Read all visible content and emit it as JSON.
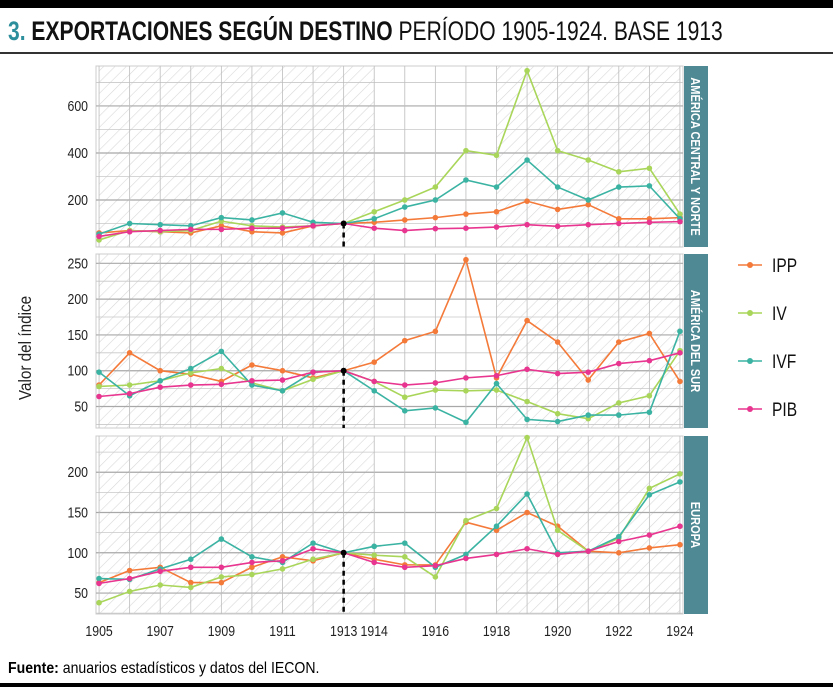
{
  "title": {
    "number": "3.",
    "bold": "EXPORTACIONES SEGÚN DESTINO",
    "rest": "PERÍODO 1905-1924. BASE 1913"
  },
  "footer": {
    "label": "Fuente:",
    "text": "anuarios estadísticos y datos del IECON."
  },
  "chart_data": {
    "type": "line",
    "ylabel": "Valor del índice",
    "xlabel": "",
    "x": [
      1905,
      1906,
      1907,
      1908,
      1909,
      1910,
      1911,
      1912,
      1913,
      1914,
      1915,
      1916,
      1917,
      1918,
      1919,
      1920,
      1921,
      1922,
      1923,
      1924
    ],
    "x_tick_labels": [
      "1905",
      "1907",
      "1909",
      "1911",
      "1913",
      "1914",
      "1916",
      "1918",
      "1920",
      "1922",
      "1924"
    ],
    "base_year": 1913,
    "shaded_periods": [
      [
        1905,
        1914
      ],
      [
        1918,
        1924
      ]
    ],
    "legend": {
      "placement": "right",
      "entries": [
        "IPP",
        "IV",
        "IVF",
        "PIB"
      ]
    },
    "colors": {
      "IPP": "#f47a3a",
      "IV": "#a9d65a",
      "IVF": "#3bb3a3",
      "PIB": "#e8358f",
      "strip": "#4f8a94"
    },
    "panels": [
      {
        "name": "AMÉRICA CENTRAL Y NORTE",
        "ylim": [
          0,
          770
        ],
        "yticks": [
          200,
          400,
          600
        ],
        "ytick_labels": [
          "200",
          "400",
          "600"
        ],
        "series": [
          {
            "name": "IPP",
            "values": [
              60,
              70,
              65,
              60,
              90,
              65,
              60,
              90,
              100,
              105,
              115,
              125,
              140,
              150,
              195,
              160,
              180,
              120,
              120,
              125
            ]
          },
          {
            "name": "IV",
            "values": [
              30,
              70,
              65,
              70,
              110,
              90,
              85,
              90,
              100,
              150,
              200,
              255,
              410,
              390,
              750,
              410,
              370,
              320,
              335,
              140
            ]
          },
          {
            "name": "IVF",
            "values": [
              55,
              100,
              95,
              90,
              125,
              115,
              145,
              105,
              100,
              120,
              170,
              200,
              285,
              255,
              370,
              255,
              200,
              255,
              260,
              120
            ]
          },
          {
            "name": "PIB",
            "values": [
              45,
              65,
              70,
              75,
              75,
              80,
              80,
              90,
              100,
              80,
              70,
              78,
              80,
              85,
              95,
              88,
              95,
              100,
              105,
              108
            ]
          }
        ]
      },
      {
        "name": "AMÉRICA DEL SUR",
        "ylim": [
          20,
          263
        ],
        "yticks": [
          50,
          100,
          150,
          200,
          250
        ],
        "ytick_labels": [
          "50",
          "100",
          "150",
          "200",
          "250"
        ],
        "series": [
          {
            "name": "IPP",
            "values": [
              80,
              125,
              100,
              95,
              85,
              108,
              100,
              90,
              100,
              112,
              142,
              155,
              255,
              90,
              170,
              140,
              87,
              140,
              152,
              85
            ]
          },
          {
            "name": "IV",
            "values": [
              78,
              80,
              86,
              97,
              103,
              83,
              72,
              88,
              100,
              85,
              63,
              73,
              72,
              73,
              57,
              40,
              33,
              55,
              65,
              128
            ]
          },
          {
            "name": "IVF",
            "values": [
              98,
              65,
              86,
              103,
              127,
              80,
              72,
              98,
              100,
              72,
              44,
              48,
              28,
              82,
              32,
              29,
              38,
              38,
              42,
              155
            ]
          },
          {
            "name": "PIB",
            "values": [
              64,
              68,
              77,
              80,
              81,
              86,
              87,
              98,
              100,
              85,
              80,
              83,
              90,
              93,
              102,
              96,
              98,
              110,
              114,
              125
            ]
          }
        ]
      },
      {
        "name": "EUROPA",
        "ylim": [
          24,
          245
        ],
        "yticks": [
          50,
          100,
          150,
          200
        ],
        "ytick_labels": [
          "50",
          "100",
          "150",
          "200"
        ],
        "series": [
          {
            "name": "IPP",
            "values": [
              63,
              78,
              82,
              63,
              63,
              82,
              95,
              90,
              100,
              92,
              85,
              85,
              138,
              128,
              150,
              133,
              102,
              100,
              106,
              110
            ]
          },
          {
            "name": "IV",
            "values": [
              38,
              52,
              60,
              57,
              70,
              73,
              80,
              92,
              100,
              97,
              95,
              70,
              140,
              155,
              243,
              128,
              102,
              118,
              180,
              198
            ]
          },
          {
            "name": "IVF",
            "values": [
              68,
              67,
              80,
              92,
              117,
              95,
              88,
              112,
              100,
              108,
              112,
              82,
              98,
              133,
              173,
              100,
              102,
              120,
              172,
              188
            ]
          },
          {
            "name": "PIB",
            "values": [
              62,
              68,
              77,
              82,
              82,
              88,
              90,
              105,
              100,
              88,
              82,
              84,
              93,
              98,
              105,
              98,
              102,
              114,
              122,
              133
            ]
          }
        ]
      }
    ]
  }
}
